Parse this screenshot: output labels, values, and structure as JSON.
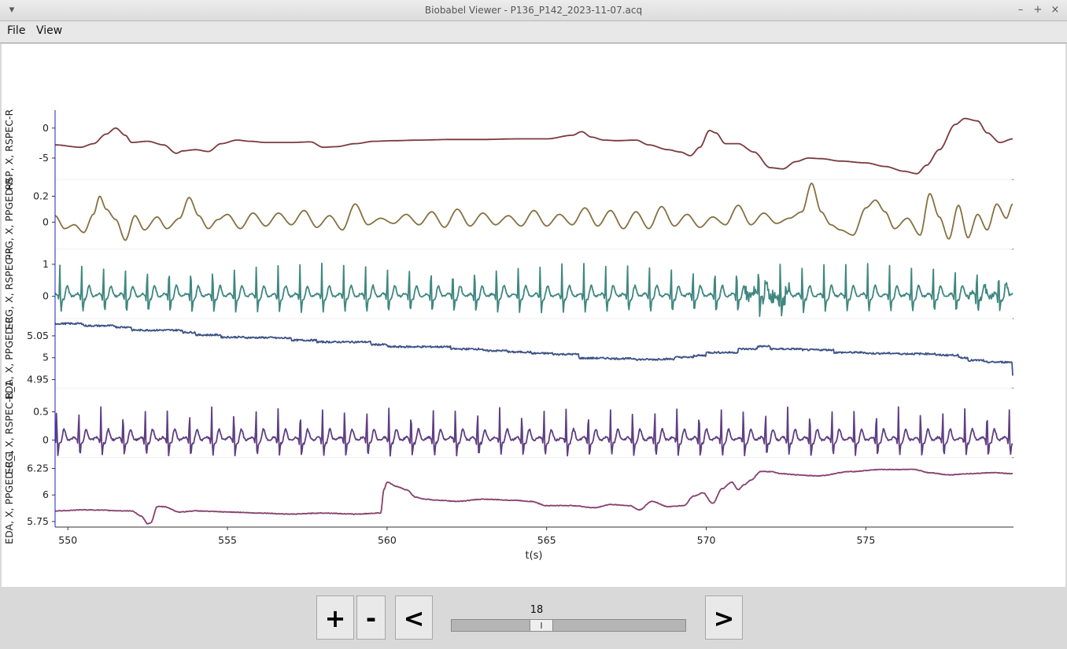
{
  "window": {
    "title": "Biobabel Viewer - P136_P142_2023-11-07.acq",
    "menu_icon": "chevron-down-icon",
    "min_icon": "minimize-icon",
    "max_icon": "maximize-icon",
    "close_icon": "close-icon",
    "min_glyph": "–",
    "max_glyph": "+",
    "close_glyph": "×",
    "menu_glyph": "▾"
  },
  "menu": {
    "items": [
      "File",
      "View"
    ]
  },
  "controls": {
    "zoom_in": "+",
    "zoom_out": "-",
    "prev": "<",
    "next": ">",
    "slider_value": "18",
    "slider_position": 0.37
  },
  "chart_data": {
    "type": "line",
    "xlabel": "t(s)",
    "xlim": [
      549.6,
      579.6
    ],
    "x_ticks": [
      550,
      555,
      560,
      565,
      570,
      575
    ],
    "panels": [
      {
        "ylabel": "RSP, X, RSPEC-R",
        "color": "#7b3a3e",
        "ylim": [
          -8.2,
          2.6
        ],
        "y_ticks": [
          0,
          -5
        ],
        "kind": "rsp",
        "x": [
          549.6,
          550.4,
          550.8,
          551.2,
          551.5,
          551.8,
          552.0,
          552.5,
          553.0,
          553.4,
          553.6,
          554.0,
          554.4,
          554.8,
          555.3,
          555.7,
          556.2,
          557.0,
          557.6,
          558.0,
          558.4,
          559.0,
          559.6,
          560.2,
          561.0,
          562.0,
          563.0,
          564.0,
          565.0,
          565.8,
          566.1,
          566.4,
          566.8,
          567.2,
          567.8,
          568.2,
          568.8,
          569.2,
          569.5,
          569.8,
          570.1,
          570.3,
          570.6,
          571.0,
          571.5,
          572.0,
          572.4,
          572.8,
          573.2,
          573.6,
          574.2,
          575.0,
          575.6,
          576.2,
          576.6,
          576.9,
          577.3,
          577.8,
          578.1,
          578.5,
          578.8,
          579.2,
          579.6
        ],
        "y": [
          -2.8,
          -3.2,
          -2.6,
          -1.0,
          0.0,
          -1.2,
          -2.4,
          -2.2,
          -2.8,
          -4.2,
          -3.8,
          -3.6,
          -3.9,
          -2.6,
          -2.0,
          -2.2,
          -2.4,
          -2.4,
          -2.3,
          -3.2,
          -3.1,
          -2.6,
          -2.2,
          -2.1,
          -2.0,
          -1.9,
          -1.9,
          -1.8,
          -1.8,
          -1.2,
          -0.6,
          -1.5,
          -2.0,
          -2.1,
          -2.0,
          -2.8,
          -3.6,
          -4.0,
          -4.6,
          -3.2,
          -0.4,
          -0.8,
          -2.6,
          -2.6,
          -4.0,
          -6.6,
          -6.8,
          -5.6,
          -5.0,
          -5.1,
          -5.5,
          -5.8,
          -6.4,
          -7.2,
          -7.6,
          -6.2,
          -3.6,
          0.6,
          1.6,
          1.2,
          -0.8,
          -2.4,
          -1.8
        ]
      },
      {
        "ylabel": "PPG, X, PPGED-R",
        "color": "#857140",
        "ylim": [
          -0.19,
          0.31
        ],
        "y_ticks": [
          0.2,
          0.0
        ],
        "kind": "ppg",
        "x": [
          549.6,
          549.9,
          550.2,
          550.5,
          550.8,
          551.0,
          551.2,
          551.5,
          551.8,
          552.1,
          552.4,
          552.8,
          553.1,
          553.5,
          553.8,
          554.1,
          554.4,
          554.7,
          555.0,
          555.4,
          555.8,
          556.2,
          556.6,
          557.0,
          557.4,
          557.8,
          558.2,
          558.6,
          559.0,
          559.4,
          559.8,
          560.2,
          560.6,
          561.0,
          561.4,
          561.8,
          562.2,
          562.6,
          563.0,
          563.4,
          563.8,
          564.2,
          564.6,
          565.0,
          565.4,
          565.8,
          566.2,
          566.6,
          567.0,
          567.4,
          567.8,
          568.2,
          568.6,
          569.0,
          569.4,
          569.8,
          570.2,
          570.6,
          571.0,
          571.4,
          571.8,
          572.2,
          572.6,
          573.0,
          573.3,
          573.6,
          573.9,
          574.2,
          574.6,
          575.0,
          575.3,
          575.6,
          575.9,
          576.3,
          576.7,
          577.0,
          577.3,
          577.6,
          577.9,
          578.2,
          578.5,
          578.8,
          579.1,
          579.4,
          579.6
        ],
        "y": [
          0.05,
          -0.05,
          -0.02,
          -0.08,
          0.06,
          0.2,
          0.1,
          0.02,
          -0.14,
          0.05,
          -0.06,
          0.04,
          -0.05,
          0.03,
          0.19,
          0.05,
          -0.05,
          0.02,
          0.06,
          -0.05,
          0.07,
          -0.03,
          0.07,
          -0.02,
          0.09,
          -0.04,
          0.05,
          -0.06,
          0.14,
          -0.02,
          0.03,
          -0.01,
          0.06,
          -0.02,
          0.08,
          -0.04,
          0.1,
          -0.03,
          0.07,
          -0.02,
          0.05,
          -0.03,
          0.09,
          -0.03,
          0.06,
          -0.02,
          0.11,
          -0.03,
          0.09,
          -0.05,
          0.08,
          -0.05,
          0.12,
          -0.03,
          0.06,
          -0.04,
          0.04,
          -0.02,
          0.13,
          -0.02,
          0.07,
          -0.01,
          0.03,
          0.08,
          0.3,
          0.08,
          -0.02,
          -0.06,
          -0.1,
          0.11,
          0.17,
          0.08,
          -0.05,
          0.03,
          -0.1,
          0.22,
          0.04,
          -0.13,
          0.13,
          -0.12,
          0.06,
          -0.06,
          0.14,
          0.03,
          0.14
        ]
      },
      {
        "ylabel": "ECG, X, RSPEC-R",
        "color": "#3f8781",
        "ylim": [
          -0.62,
          1.4
        ],
        "y_ticks": [
          1,
          0
        ],
        "kind": "ecg",
        "beat_start": 549.75,
        "beat_period": 0.684,
        "peak": 1.05
      },
      {
        "ylabel": "EDA, X, PPGED-R",
        "color": "#3d5286",
        "ylim": [
          4.936,
          5.084
        ],
        "y_ticks": [
          5.05,
          5.0,
          4.95
        ],
        "kind": "step",
        "x": [
          549.6,
          550.5,
          551.5,
          552.0,
          553.0,
          553.6,
          554.0,
          554.8,
          555.5,
          556.5,
          557.0,
          557.8,
          558.5,
          559.5,
          560.0,
          561.0,
          562.0,
          562.5,
          563.0,
          563.8,
          564.5,
          565.2,
          566.0,
          567.0,
          567.8,
          568.5,
          569.0,
          569.6,
          570.0,
          570.6,
          571.0,
          571.6,
          572.0,
          573.0,
          573.6,
          574.0,
          575.0,
          576.0,
          577.2,
          577.9,
          578.2,
          578.7,
          579.6
        ],
        "y": [
          5.078,
          5.073,
          5.07,
          5.063,
          5.063,
          5.058,
          5.052,
          5.047,
          5.046,
          5.045,
          5.04,
          5.036,
          5.036,
          5.03,
          5.025,
          5.025,
          5.02,
          5.02,
          5.016,
          5.013,
          5.01,
          5.008,
          4.999,
          4.998,
          4.996,
          4.997,
          5.001,
          5.005,
          5.012,
          5.012,
          5.02,
          5.026,
          5.02,
          5.018,
          5.018,
          5.012,
          5.01,
          5.009,
          5.006,
          5.0,
          4.994,
          4.99,
          4.96
        ]
      },
      {
        "ylabel": "ECG, X, RSPEC-R_1",
        "color": "#5f3e82",
        "ylim": [
          -0.27,
          0.88
        ],
        "y_ticks": [
          0.5,
          0.0
        ],
        "kind": "ecg",
        "beat_start": 549.65,
        "beat_period": 0.694,
        "peak": 0.6
      },
      {
        "ylabel": "EDA, X, PPGED-R_1",
        "color": "#87406e",
        "ylim": [
          5.72,
          6.33
        ],
        "y_ticks": [
          6.25,
          6.0,
          5.75
        ],
        "kind": "eda2",
        "x": [
          549.6,
          550.5,
          552.0,
          552.3,
          552.5,
          552.6,
          552.8,
          553.0,
          553.5,
          554.0,
          555.0,
          556.0,
          557.0,
          558.0,
          559.0,
          559.8,
          559.9,
          560.0,
          560.3,
          560.6,
          560.9,
          561.2,
          561.6,
          562.2,
          563.0,
          564.0,
          564.5,
          565.0,
          565.8,
          566.5,
          567.0,
          567.6,
          567.9,
          568.3,
          568.8,
          569.3,
          569.6,
          569.9,
          570.2,
          570.5,
          570.8,
          571.0,
          571.2,
          571.4,
          571.7,
          572.0,
          572.4,
          572.8,
          573.5,
          574.5,
          575.5,
          576.5,
          577.0,
          577.6,
          578.2,
          579.0,
          579.6
        ],
        "y": [
          5.85,
          5.86,
          5.85,
          5.8,
          5.73,
          5.74,
          5.89,
          5.89,
          5.84,
          5.85,
          5.84,
          5.83,
          5.82,
          5.83,
          5.82,
          5.83,
          6.05,
          6.12,
          6.08,
          6.05,
          5.98,
          5.96,
          5.95,
          5.94,
          5.96,
          5.95,
          5.94,
          5.9,
          5.9,
          5.88,
          5.91,
          5.9,
          5.86,
          5.94,
          5.89,
          5.9,
          5.99,
          6.02,
          5.92,
          6.06,
          6.12,
          6.05,
          6.1,
          6.14,
          6.22,
          6.22,
          6.2,
          6.19,
          6.18,
          6.22,
          6.24,
          6.24,
          6.21,
          6.19,
          6.2,
          6.21,
          6.2
        ]
      }
    ]
  }
}
